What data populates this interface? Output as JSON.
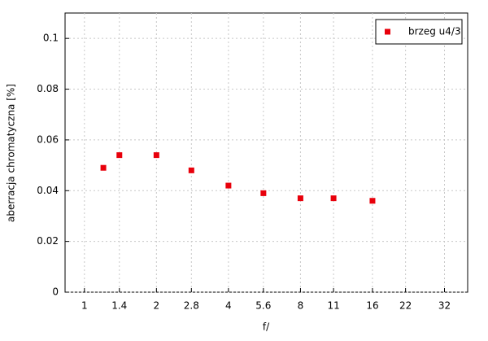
{
  "chart_data": {
    "type": "scatter",
    "x_label": "f/",
    "y_label": "aberracja chromatyczna [%]",
    "x_scale": "log",
    "grid": true,
    "legend_position": "upper right",
    "series": [
      {
        "name": "brzeg u4/3",
        "color": "#e8000b",
        "x": [
          1.2,
          1.4,
          2,
          2.8,
          4,
          5.6,
          8,
          11,
          16
        ],
        "values": [
          0.049,
          0.054,
          0.054,
          0.048,
          0.042,
          0.039,
          0.037,
          0.037,
          0.036
        ]
      }
    ],
    "xlim": [
      0.83,
      40
    ],
    "xticks": [
      1,
      1.4,
      2,
      2.8,
      4,
      5.6,
      8,
      11,
      16,
      22,
      32
    ],
    "ylim": [
      0,
      0.11
    ],
    "yticks": [
      0,
      0.02,
      0.04,
      0.06,
      0.08,
      0.1
    ]
  }
}
